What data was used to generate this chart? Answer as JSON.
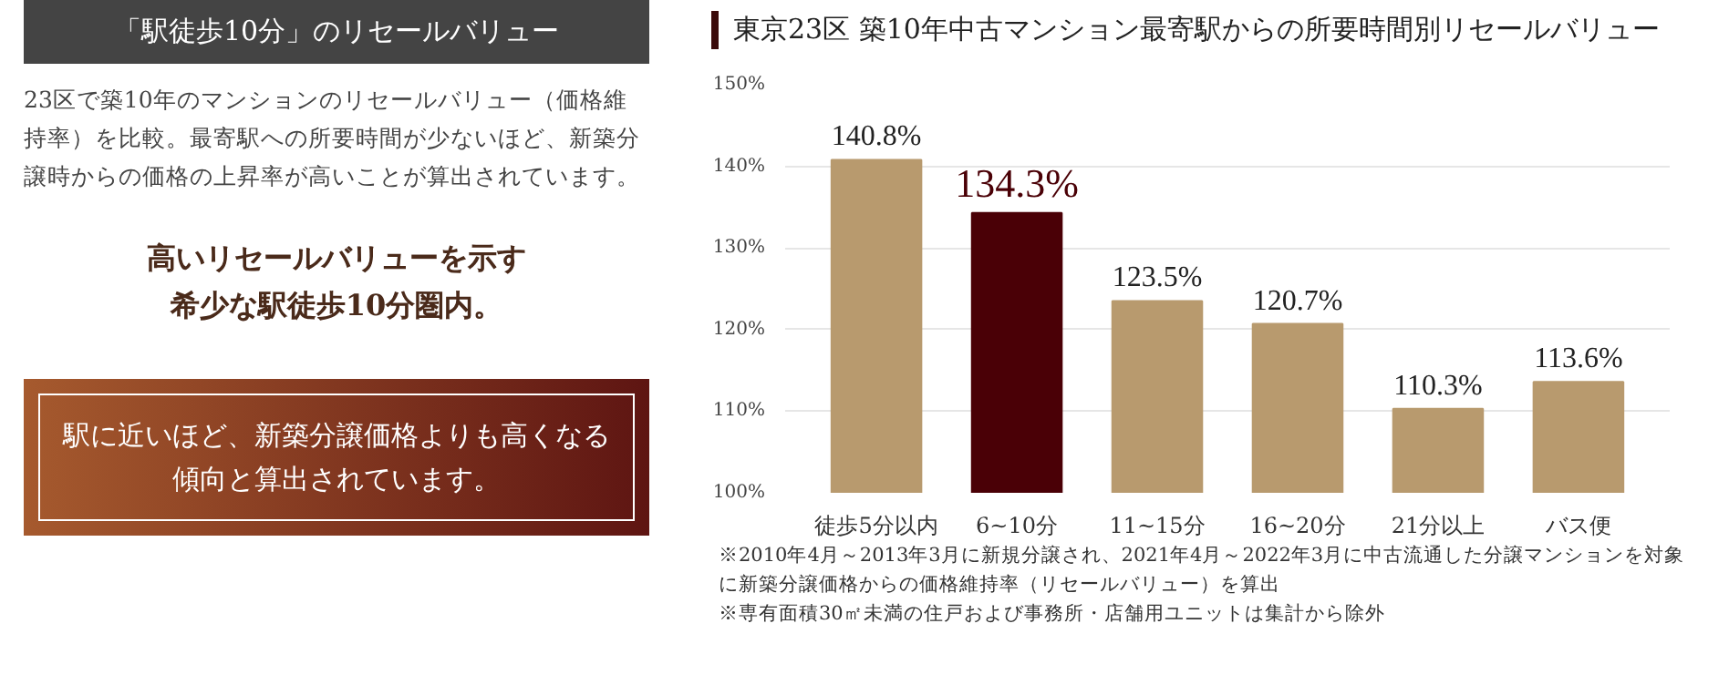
{
  "chart_data": [
    {
      "type": "other",
      "title": "「駅徒歩10分」のリセールバリュー",
      "annotations": [
        "23区で築10年のマンションのリセールバリュー（価格維持率）を比較。最寄駅への所要時間が少ないほど、新築分譲時からの価格の上昇率が高いことが算出されています。",
        "高いリセールバリューを示す",
        "希少な駅徒歩10分圏内。",
        "駅に近いほど、新築分譲価格よりも高くなる傾向と算出されています。"
      ]
    },
    {
      "type": "bar",
      "title": "東京23区  築10年中古マンション最寄駅からの所要時間別リセールバリュー",
      "categories": [
        "徒歩5分以内",
        "6~10分",
        "11~15分",
        "16~20分",
        "21分以上",
        "バス便"
      ],
      "values": [
        140.8,
        134.3,
        123.5,
        120.7,
        110.3,
        113.6
      ],
      "value_labels": [
        "140.8%",
        "134.3%",
        "123.5%",
        "120.7%",
        "110.3%",
        "113.6%"
      ],
      "colors": [
        "#b89a6e",
        "#4a0006",
        "#b89a6e",
        "#b89a6e",
        "#b89a6e",
        "#b89a6e"
      ],
      "ylim": [
        100,
        150
      ],
      "yticks": [
        {
          "value": 100,
          "label": "100%"
        },
        {
          "value": 110,
          "label": "110%"
        },
        {
          "value": 120,
          "label": "120%"
        },
        {
          "value": 130,
          "label": "130%"
        },
        {
          "value": 140,
          "label": "140%"
        },
        {
          "value": 150,
          "label": "150%"
        }
      ],
      "grid": "y",
      "annotations": [
        "※2010年4月～2013年3月に新規分譲され、2021年4月～2022年3月に中古流通した分譲マンションを対象に新築分譲価格からの価格維持率（リセールバリュー）を算出",
        "※専有面積30㎡未満の住戸および事務所・店舗用ユニットは集計から除外"
      ]
    }
  ]
}
